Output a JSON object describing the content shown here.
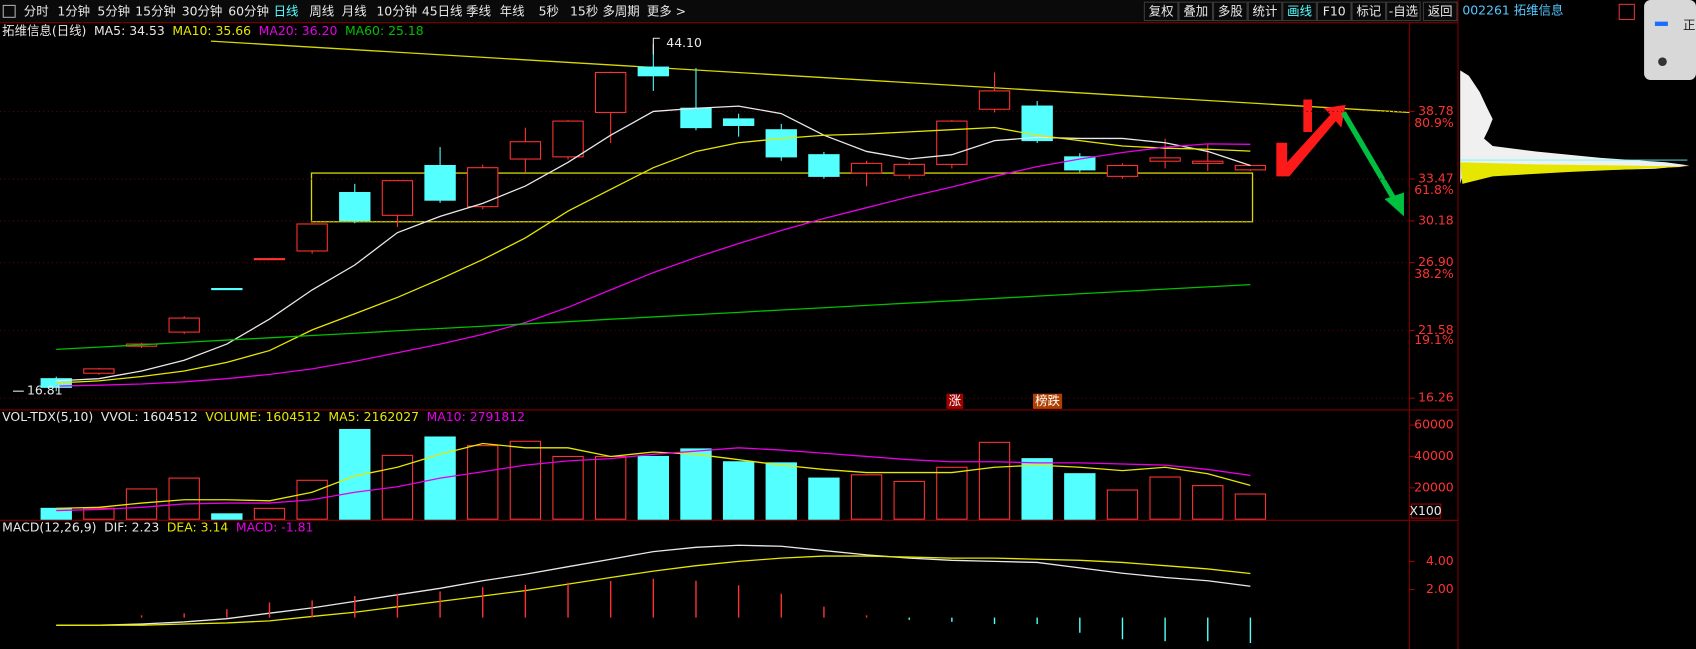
{
  "toolbar": {
    "left": [
      "分时",
      "1分钟",
      "5分钟",
      "15分钟",
      "30分钟",
      "60分钟",
      "日线",
      "周线",
      "月线",
      "10分钟",
      "45日线",
      "季线",
      "年线",
      "5秒",
      "15秒",
      "多周期",
      "更多 >"
    ],
    "right": [
      "复权",
      "叠加",
      "多股",
      "统计",
      "画线",
      "F10",
      "标记",
      "-自选",
      "返回"
    ]
  },
  "right_panel": {
    "title": "002261 拓维信息",
    "overlay": "正"
  },
  "chart_data": [
    {
      "type": "candlestick",
      "title": "拓维信息(日线)",
      "open": [
        17.79,
        18.22,
        20.34,
        21.45,
        24.87,
        27.2,
        27.82,
        32.41,
        30.62,
        34.53,
        31.3,
        35.04,
        35.21,
        38.7,
        42.26,
        39.03,
        38.19,
        37.34,
        35.38,
        33.94,
        33.77,
        34.62,
        38.95,
        39.2,
        35.21,
        33.68,
        34.87,
        34.7,
        34.19
      ],
      "high": [
        17.95,
        18.64,
        20.6,
        22.7,
        24.9,
        27.26,
        30.0,
        33.09,
        33.4,
        35.98,
        34.6,
        37.5,
        38.1,
        41.9,
        44.1,
        42.18,
        38.6,
        37.8,
        35.6,
        34.9,
        34.8,
        38.1,
        41.84,
        39.6,
        35.5,
        34.7,
        36.65,
        36.2,
        34.6
      ],
      "low": [
        16.81,
        18.1,
        20.2,
        21.3,
        24.8,
        27.16,
        27.6,
        30.0,
        29.7,
        31.6,
        31.1,
        34.0,
        35.0,
        36.3,
        40.39,
        37.3,
        36.8,
        34.9,
        33.5,
        32.9,
        33.5,
        34.3,
        38.7,
        36.3,
        34.0,
        33.5,
        34.3,
        34.1,
        34.1
      ],
      "close": [
        17.11,
        18.56,
        20.51,
        22.55,
        24.85,
        27.22,
        29.94,
        30.2,
        33.34,
        31.81,
        34.36,
        36.4,
        38.02,
        41.84,
        41.58,
        37.51,
        37.68,
        35.21,
        33.68,
        34.7,
        34.62,
        38.02,
        40.39,
        36.49,
        34.19,
        34.53,
        35.13,
        34.87,
        34.53
      ],
      "up_color": "#ff3232",
      "down_color": "#54ffff",
      "series": [
        {
          "name": "MA5: 34.53",
          "color": "#e8e8e8",
          "values": [
            17.62,
            17.79,
            18.39,
            19.24,
            20.51,
            22.47,
            24.76,
            26.72,
            29.26,
            30.54,
            31.56,
            32.92,
            34.79,
            36.91,
            38.78,
            39.03,
            39.2,
            38.61,
            36.91,
            35.64,
            35.04,
            35.38,
            36.49,
            36.74,
            36.66,
            36.66,
            36.32,
            35.64,
            34.53
          ]
        },
        {
          "name": "MA10: 35.66",
          "color": "#e6e600",
          "values": [
            17.45,
            17.62,
            17.96,
            18.39,
            19.07,
            20.0,
            21.62,
            22.89,
            24.17,
            25.61,
            27.14,
            28.84,
            30.96,
            32.66,
            34.36,
            35.64,
            36.32,
            36.66,
            36.91,
            37.0,
            37.17,
            37.34,
            37.51,
            36.91,
            36.49,
            36.06,
            35.89,
            35.81,
            35.66
          ]
        },
        {
          "name": "MA20: 36.20",
          "color": "#e600e6",
          "values": [
            17.2,
            17.28,
            17.37,
            17.54,
            17.79,
            18.13,
            18.56,
            19.15,
            19.83,
            20.51,
            21.27,
            22.21,
            23.4,
            24.76,
            26.12,
            27.31,
            28.41,
            29.43,
            30.37,
            31.22,
            32.07,
            32.84,
            33.68,
            34.45,
            35.04,
            35.55,
            35.98,
            36.23,
            36.2
          ]
        },
        {
          "name": "MA60: 25.18",
          "color": "#00c000",
          "values": [
            20.09,
            20.27,
            20.45,
            20.64,
            20.82,
            21.0,
            21.18,
            21.36,
            21.55,
            21.73,
            21.91,
            22.09,
            22.27,
            22.46,
            22.64,
            22.82,
            23.0,
            23.18,
            23.36,
            23.55,
            23.73,
            23.91,
            24.09,
            24.27,
            24.46,
            24.64,
            24.82,
            25.0,
            25.18
          ]
        }
      ],
      "ylim": [
        15.42,
        45.66
      ],
      "yticks": [
        38.78,
        33.47,
        30.18,
        {
          "value": 26.9,
          "label": "26.90"
        },
        21.58,
        16.26
      ],
      "grid": true,
      "fib_labels": [
        "80.9%",
        "61.8%",
        "38.2%",
        "19.1%"
      ],
      "high_marker": {
        "value": 44.1,
        "label": "44.10"
      },
      "low_marker": 16.81,
      "annotations": [
        "涨",
        "榜跌"
      ]
    },
    {
      "type": "bar",
      "title": "VOL-TDX(5,10)",
      "legend_extra": "VVOL: 1604512",
      "series": [
        {
          "name": "VOLUME: 1604512",
          "color": "#e6e600",
          "values": [
            6900,
            7000,
            19300,
            26200,
            3400,
            6900,
            24800,
            57200,
            40700,
            52400,
            46900,
            49700,
            40000,
            40000,
            40000,
            44800,
            36600,
            35900,
            26200,
            28300,
            24100,
            33100,
            49000,
            38600,
            29000,
            18600,
            26900,
            21400,
            16045
          ]
        },
        {
          "name": "MA5: 2162027",
          "color": "#e6e600",
          "values": [
            6900,
            7600,
            10300,
            12400,
            12400,
            11700,
            17200,
            27600,
            33100,
            41400,
            48300,
            45500,
            45500,
            40000,
            42800,
            41400,
            37900,
            34500,
            31700,
            29700,
            29700,
            29700,
            33100,
            34500,
            33100,
            31000,
            33100,
            29000,
            21620
          ]
        },
        {
          "name": "MA10: 2791812",
          "color": "#e600e6",
          "values": [
            5500,
            6200,
            7600,
            9700,
            10300,
            10300,
            12400,
            17200,
            20700,
            26200,
            30300,
            34500,
            37200,
            38600,
            41400,
            43400,
            45500,
            44100,
            42100,
            40000,
            37900,
            36600,
            36600,
            35900,
            35900,
            35200,
            34500,
            31700,
            27918
          ]
        }
      ],
      "ylim": [
        0,
        66900
      ],
      "yticks": [
        60000,
        40000,
        20000
      ],
      "y_unit": "X100",
      "grid": true
    },
    {
      "type": "line",
      "title": "MACD(12,26,9)",
      "series": [
        {
          "name": "DIF: 2.23",
          "color": "#e8e8e8",
          "values": [
            -0.54,
            -0.54,
            -0.46,
            -0.31,
            -0.08,
            0.31,
            0.69,
            1.15,
            1.62,
            2.08,
            2.62,
            3.08,
            3.62,
            4.15,
            4.69,
            5.0,
            5.15,
            5.08,
            4.77,
            4.46,
            4.23,
            4.08,
            4.0,
            3.92,
            3.54,
            3.15,
            2.85,
            2.62,
            2.23
          ]
        },
        {
          "name": "DEA: 3.14",
          "color": "#e6e600",
          "values": [
            -0.54,
            -0.54,
            -0.54,
            -0.46,
            -0.38,
            -0.23,
            0.08,
            0.38,
            0.77,
            1.15,
            1.54,
            1.92,
            2.38,
            2.85,
            3.31,
            3.69,
            4.0,
            4.23,
            4.38,
            4.38,
            4.31,
            4.23,
            4.23,
            4.15,
            4.08,
            3.92,
            3.69,
            3.46,
            3.14
          ]
        },
        {
          "name": "MACD: -1.81",
          "type": "histogram",
          "color": "#ff3232",
          "negative_color": "#54ffff",
          "legend_color": "#e600e6",
          "values": [
            0,
            0,
            0.16,
            0.3,
            0.6,
            1.08,
            1.22,
            1.54,
            1.7,
            1.86,
            2.16,
            2.32,
            2.48,
            2.6,
            2.76,
            2.62,
            2.3,
            1.7,
            0.78,
            0.16,
            -0.16,
            -0.3,
            -0.46,
            -0.46,
            -1.08,
            -1.54,
            -1.68,
            -1.68,
            -1.81
          ]
        }
      ],
      "ylim": [
        -2.08,
        6.77
      ],
      "yticks": [
        {
          "value": 4,
          "label": "4.00"
        },
        {
          "value": 2,
          "label": "2.00"
        }
      ]
    }
  ]
}
